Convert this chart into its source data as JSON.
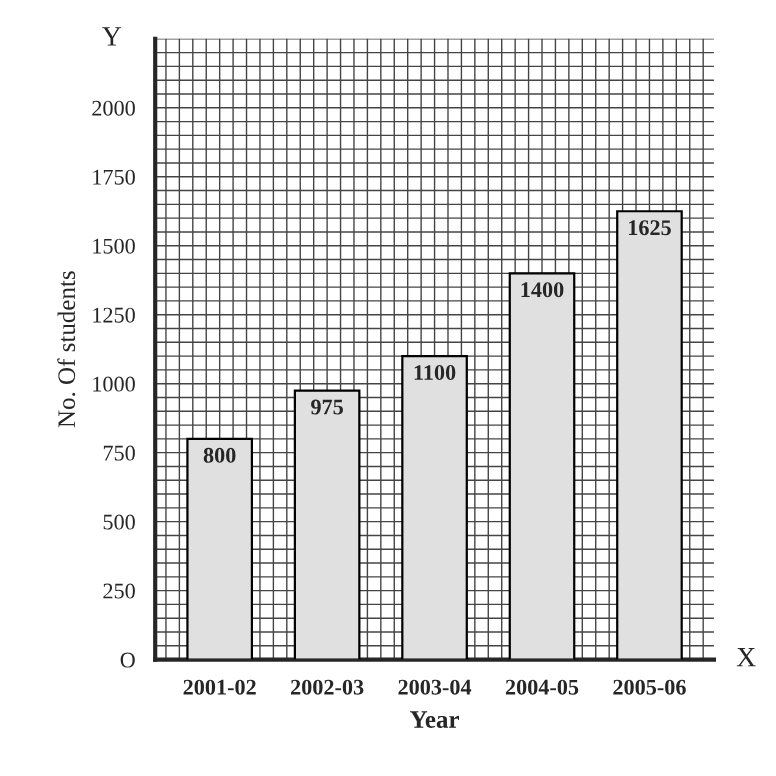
{
  "chart_data": {
    "type": "bar",
    "xlabel": "Year",
    "ylabel": "No. Of students",
    "categories": [
      "2001-02",
      "2002-03",
      "2003-04",
      "2004-05",
      "2005-06"
    ],
    "values": [
      800,
      975,
      1100,
      1400,
      1625
    ],
    "color": "#e0e0e0",
    "data_labels": true,
    "ylim": [
      0,
      2250
    ],
    "yticks": [
      {
        "value": 0,
        "label": "O"
      },
      250,
      500,
      750,
      1000,
      1250,
      1500,
      1750,
      2000
    ],
    "grid": true,
    "annotations": [
      "Y",
      "X"
    ]
  }
}
